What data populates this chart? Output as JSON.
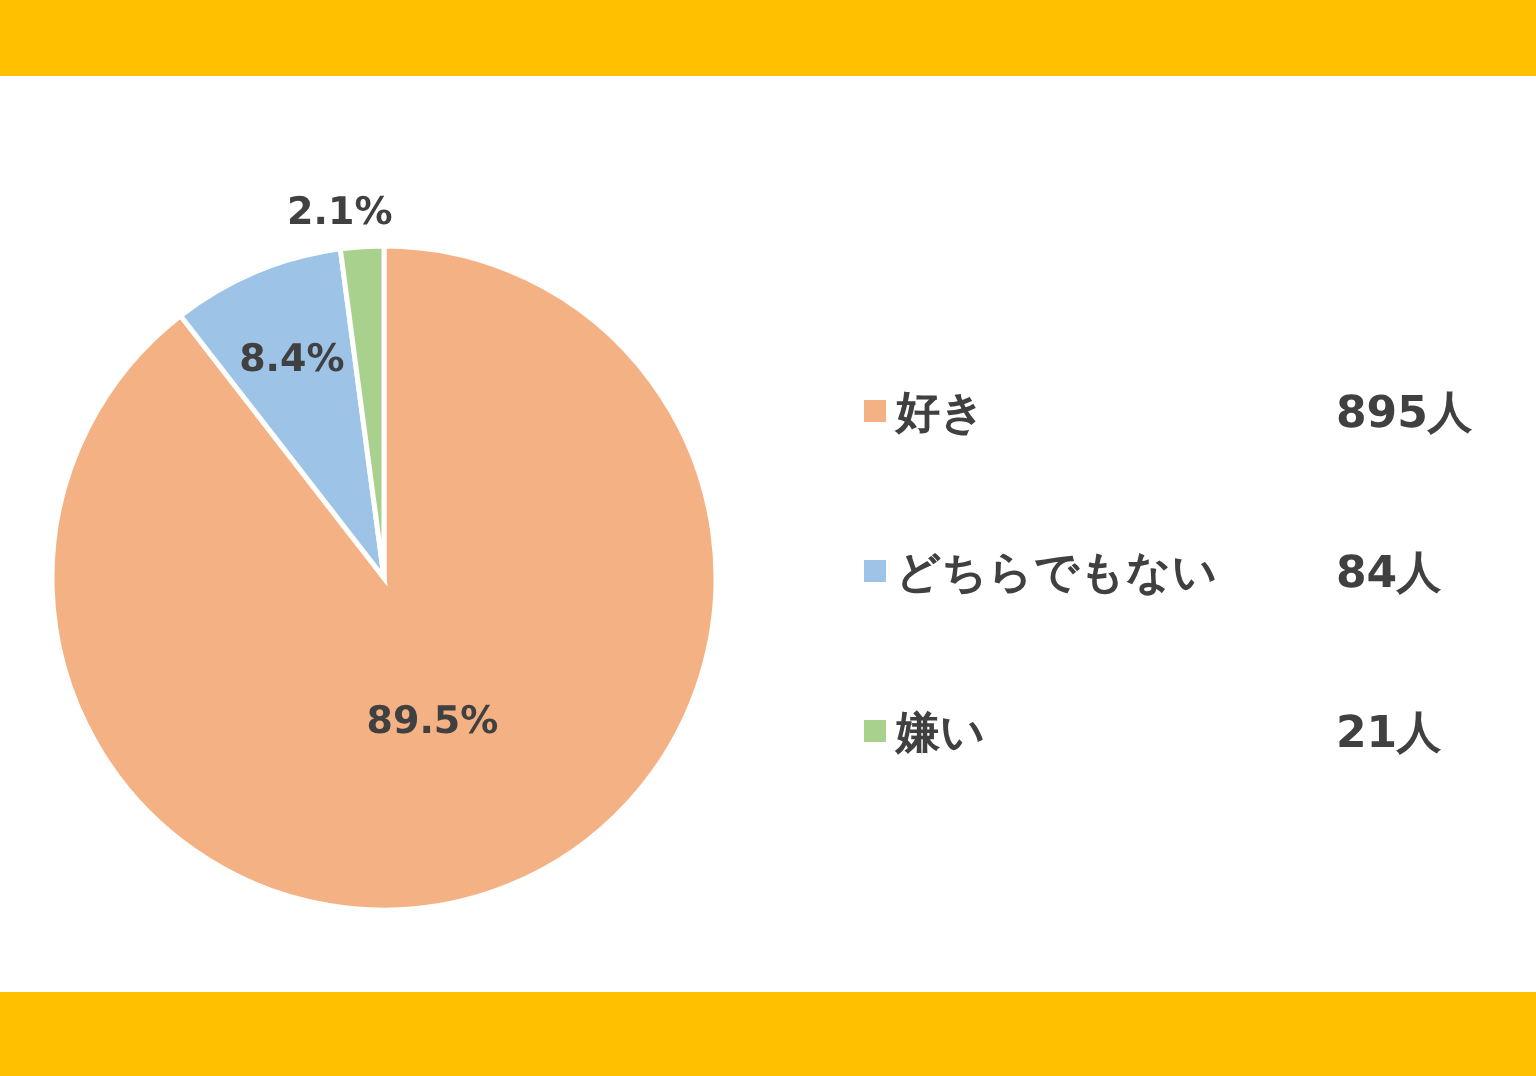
{
  "chart_data": {
    "type": "pie",
    "categories": [
      "好き",
      "どちらでもない",
      "嫌い"
    ],
    "values": [
      89.5,
      8.4,
      2.1
    ],
    "colors": [
      "#f4b183",
      "#9dc3e6",
      "#a9d18e"
    ],
    "value_labels": [
      "89.5%",
      "8.4%",
      "2.1%"
    ],
    "annotations": [
      "895人",
      "84人",
      "21人"
    ],
    "legend": "right"
  }
}
